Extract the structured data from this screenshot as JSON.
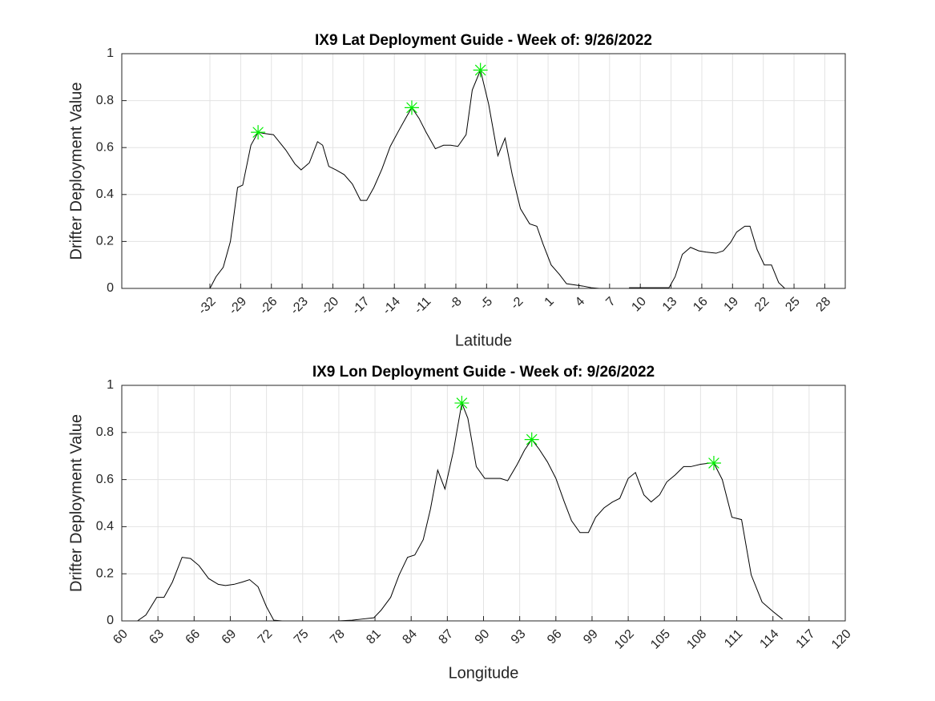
{
  "chart_data": [
    {
      "type": "line",
      "title": "IX9 Lat Deployment Guide - Week of: 9/26/2022",
      "xlabel": "Latitude",
      "ylabel": "Drifter Deployment Value",
      "xlim": [
        -40.6,
        30
      ],
      "ylim": [
        0,
        1
      ],
      "xticks": [
        -32,
        -29,
        -26,
        -23,
        -20,
        -17,
        -14,
        -11,
        -8,
        -5,
        -2,
        1,
        4,
        7,
        10,
        13,
        16,
        19,
        22,
        25,
        28
      ],
      "yticks": [
        0,
        0.2,
        0.4,
        0.6,
        0.8,
        1
      ],
      "grid": true,
      "color": "#000000",
      "x": [
        -32,
        -31.4,
        -30.7,
        -30.0,
        -29.3,
        -28.8,
        -28.0,
        -27.3,
        -26.7,
        -25.8,
        -24.6,
        -23.7,
        -23.1,
        -22.3,
        -21.5,
        -21.0,
        -20.4,
        -19.7,
        -18.9,
        -18.1,
        -17.3,
        -16.7,
        -16.0,
        -15.2,
        -14.4,
        -13.6,
        -12.9,
        -12.3,
        -11.6,
        -10.9,
        -10.0,
        -9.2,
        -8.5,
        -7.8,
        -7.0,
        -6.4,
        -5.6,
        -4.8,
        -3.9,
        -3.2,
        -2.5,
        -1.7,
        -0.8,
        -0.1,
        0.5,
        1.3,
        2.1,
        2.8,
        3.6,
        4.4,
        5.2,
        6.0,
        6.7,
        7.8,
        8.9,
        9.6,
        10.8,
        12.0,
        12.8,
        13.4,
        14.1,
        14.9,
        15.7,
        16.4,
        17.4,
        18.1,
        18.8,
        19.4,
        20.2,
        20.7,
        21.4,
        22.1,
        22.8,
        23.5,
        24.1
      ],
      "values": [
        0,
        0.05,
        0.09,
        0.2,
        0.43,
        0.44,
        0.61,
        0.665,
        0.66,
        0.655,
        0.59,
        0.53,
        0.505,
        0.535,
        0.625,
        0.61,
        0.52,
        0.505,
        0.485,
        0.445,
        0.375,
        0.375,
        0.43,
        0.51,
        0.605,
        0.67,
        0.725,
        0.77,
        0.725,
        0.665,
        0.595,
        0.61,
        0.61,
        0.605,
        0.655,
        0.845,
        0.93,
        0.785,
        0.565,
        0.64,
        0.485,
        0.34,
        0.275,
        0.265,
        0.19,
        0.1,
        0.06,
        0.02,
        0.015,
        0.01,
        0.003,
        0,
        0,
        null,
        0.003,
        0.003,
        0.003,
        0.003,
        0.003,
        0.05,
        0.145,
        0.175,
        0.16,
        0.155,
        0.15,
        0.16,
        0.195,
        0.24,
        0.265,
        0.265,
        0.165,
        0.1,
        0.1,
        0.025,
        0
      ],
      "markers": {
        "color": "#00ee00",
        "x": [
          -27.3,
          -12.3,
          -5.6
        ],
        "values": [
          0.665,
          0.77,
          0.93
        ]
      }
    },
    {
      "type": "line",
      "title": "IX9 Lon Deployment Guide - Week of: 9/26/2022",
      "xlabel": "Longitude",
      "ylabel": "Drifter Deployment Value",
      "xlim": [
        60,
        120
      ],
      "ylim": [
        0,
        1
      ],
      "xticks": [
        60,
        63,
        66,
        69,
        72,
        75,
        78,
        81,
        84,
        87,
        90,
        93,
        96,
        99,
        102,
        105,
        108,
        111,
        114,
        117,
        120
      ],
      "yticks": [
        0,
        0.2,
        0.4,
        0.6,
        0.8,
        1
      ],
      "grid": true,
      "color": "#000000",
      "x": [
        61.3,
        62.0,
        62.9,
        63.5,
        64.2,
        65.0,
        65.7,
        66.4,
        67.2,
        68.0,
        68.6,
        69.3,
        70.0,
        70.6,
        71.3,
        72.0,
        72.6,
        73.3,
        75.9,
        76.9,
        77.9,
        79.1,
        79.8,
        80.9,
        81.5,
        82.3,
        83.0,
        83.7,
        84.3,
        85.0,
        85.6,
        86.2,
        86.8,
        87.5,
        88.2,
        88.7,
        89.4,
        90.1,
        90.8,
        91.4,
        92.0,
        92.8,
        93.4,
        94.0,
        94.6,
        95.3,
        96.0,
        96.7,
        97.3,
        98.0,
        98.7,
        99.3,
        100.0,
        100.7,
        101.3,
        102.0,
        102.6,
        103.3,
        103.9,
        104.6,
        105.2,
        105.9,
        106.6,
        107.2,
        108.0,
        108.8,
        109.1,
        109.8,
        110.6,
        111.4,
        112.2,
        113.1,
        114.0,
        114.8
      ],
      "values": [
        0,
        0.025,
        0.1,
        0.1,
        0.165,
        0.27,
        0.265,
        0.235,
        0.18,
        0.155,
        0.15,
        0.155,
        0.165,
        0.175,
        0.145,
        0.06,
        0.003,
        0,
        0,
        null,
        0,
        0.003,
        0.007,
        0.013,
        0.045,
        0.1,
        0.195,
        0.27,
        0.28,
        0.345,
        0.475,
        0.64,
        0.56,
        0.72,
        0.925,
        0.86,
        0.655,
        0.605,
        0.605,
        0.605,
        0.595,
        0.665,
        0.725,
        0.77,
        0.73,
        0.675,
        0.605,
        0.505,
        0.425,
        0.375,
        0.375,
        0.44,
        0.48,
        0.505,
        0.52,
        0.605,
        0.63,
        0.535,
        0.505,
        0.535,
        0.59,
        0.62,
        0.655,
        0.655,
        0.665,
        0.67,
        0.67,
        0.6,
        0.44,
        0.43,
        0.195,
        0.08,
        0.04,
        0.007
      ],
      "markers": {
        "color": "#00ee00",
        "x": [
          88.2,
          94.0,
          109.1
        ],
        "values": [
          0.925,
          0.77,
          0.67
        ]
      }
    }
  ]
}
